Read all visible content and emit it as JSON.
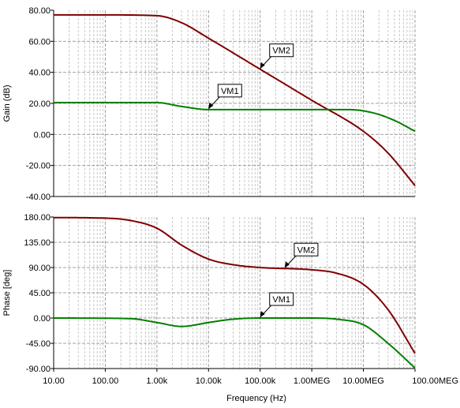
{
  "chart_data": [
    {
      "type": "line",
      "ylabel": "Gain (dB)",
      "ylim": [
        -40,
        80
      ],
      "yticks": [
        "80.00",
        "60.00",
        "40.00",
        "20.00",
        "0.00",
        "-20.00",
        "-40.00"
      ],
      "x_scale": "log",
      "xlim": [
        10,
        100000000
      ],
      "grid": true,
      "series": [
        {
          "name": "VM2",
          "color": "#800000",
          "points": [
            [
              10,
              77
            ],
            [
              100,
              77
            ],
            [
              1000,
              76.5
            ],
            [
              3000,
              72
            ],
            [
              10000,
              62
            ],
            [
              100000,
              42
            ],
            [
              1000000,
              22
            ],
            [
              10000000,
              2
            ],
            [
              30000000,
              -12
            ],
            [
              100000000,
              -33
            ]
          ]
        },
        {
          "name": "VM1",
          "color": "#008000",
          "points": [
            [
              10,
              20.5
            ],
            [
              1000,
              20.5
            ],
            [
              3000,
              18
            ],
            [
              10000,
              16
            ],
            [
              100000,
              16
            ],
            [
              1000000,
              16
            ],
            [
              5000000,
              16
            ],
            [
              15000000,
              14
            ],
            [
              40000000,
              9
            ],
            [
              100000000,
              2
            ]
          ]
        }
      ],
      "annotations": [
        {
          "text": "VM2",
          "series": "VM2",
          "x": 100000
        },
        {
          "text": "VM1",
          "series": "VM1",
          "x": 10000
        }
      ]
    },
    {
      "type": "line",
      "xlabel": "Frequency (Hz)",
      "ylabel": "Phase [deg]",
      "ylim": [
        -90,
        180
      ],
      "yticks": [
        "180.00",
        "135.00",
        "90.00",
        "45.00",
        "0.00",
        "-45.00",
        "-90.00"
      ],
      "x_scale": "log",
      "xlim": [
        10,
        100000000
      ],
      "xticks": [
        "10.00",
        "100.00",
        "1.00k",
        "10.00k",
        "100.00k",
        "1.00MEG",
        "10.00MEG",
        "100.00MEG"
      ],
      "grid": true,
      "series": [
        {
          "name": "VM2",
          "color": "#800000",
          "points": [
            [
              10,
              179
            ],
            [
              100,
              178
            ],
            [
              300,
              174
            ],
            [
              1000,
              160
            ],
            [
              3000,
              130
            ],
            [
              10000,
              105
            ],
            [
              30000,
              95
            ],
            [
              100000,
              90
            ],
            [
              1000000,
              86
            ],
            [
              3000000,
              80
            ],
            [
              10000000,
              60
            ],
            [
              30000000,
              15
            ],
            [
              100000000,
              -63
            ]
          ]
        },
        {
          "name": "VM1",
          "color": "#008000",
          "points": [
            [
              10,
              0
            ],
            [
              300,
              -1
            ],
            [
              1000,
              -8
            ],
            [
              3000,
              -15
            ],
            [
              10000,
              -8
            ],
            [
              30000,
              -2
            ],
            [
              100000,
              0
            ],
            [
              1000000,
              0
            ],
            [
              3000000,
              -2
            ],
            [
              10000000,
              -12
            ],
            [
              30000000,
              -45
            ],
            [
              100000000,
              -89
            ]
          ]
        }
      ],
      "annotations": [
        {
          "text": "VM2",
          "series": "VM2",
          "x": 300000
        },
        {
          "text": "VM1",
          "series": "VM1",
          "x": 100000
        }
      ]
    }
  ]
}
